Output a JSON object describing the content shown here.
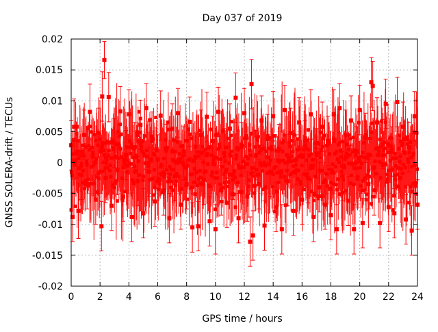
{
  "chart_data": {
    "type": "scatter",
    "title": "Day 037 of 2019",
    "xlabel": "GPS time / hours",
    "ylabel": "GNSS SOLERA-drift / TECUs",
    "xlim": [
      0,
      24
    ],
    "ylim": [
      -0.02,
      0.02
    ],
    "xticks": [
      0,
      2,
      4,
      6,
      8,
      10,
      12,
      14,
      16,
      18,
      20,
      22,
      24
    ],
    "xtick_labels": [
      "0",
      "2",
      "4",
      "6",
      "8",
      "10",
      "12",
      "14",
      "16",
      "18",
      "20",
      "22",
      "24"
    ],
    "yticks": [
      -0.02,
      -0.015,
      -0.01,
      -0.005,
      0,
      0.005,
      0.01,
      0.015,
      0.02
    ],
    "ytick_labels": [
      "-0.02",
      "-0.015",
      "-0.01",
      "-0.005",
      "0",
      "0.005",
      "0.01",
      "0.015",
      "0.02"
    ],
    "grid": true,
    "series_color": "#ff0000",
    "error_bars": true,
    "series": [
      {
        "points": [
          {
            "x": 0.0,
            "y": 0.0028,
            "err": 0.004
          },
          {
            "x": 0.1,
            "y": -0.0088,
            "err": 0.004
          },
          {
            "x": 0.2,
            "y": 0.0058,
            "err": 0.0045
          },
          {
            "x": 0.4,
            "y": 0.0015,
            "err": 0.004
          },
          {
            "x": 0.5,
            "y": -0.0078,
            "err": 0.0045
          },
          {
            "x": 0.7,
            "y": -0.002,
            "err": 0.004
          },
          {
            "x": 0.9,
            "y": 0.0045,
            "err": 0.004
          },
          {
            "x": 1.1,
            "y": -0.0035,
            "err": 0.004
          },
          {
            "x": 1.3,
            "y": 0.0082,
            "err": 0.0045
          },
          {
            "x": 1.5,
            "y": 0.001,
            "err": 0.004
          },
          {
            "x": 1.7,
            "y": -0.006,
            "err": 0.004
          },
          {
            "x": 1.9,
            "y": 0.0048,
            "err": 0.004
          },
          {
            "x": 2.1,
            "y": -0.0103,
            "err": 0.004
          },
          {
            "x": 2.15,
            "y": 0.0107,
            "err": 0.004
          },
          {
            "x": 2.3,
            "y": 0.0166,
            "err": 0.003
          },
          {
            "x": 2.4,
            "y": -0.0025,
            "err": 0.004
          },
          {
            "x": 2.6,
            "y": 0.0106,
            "err": 0.004
          },
          {
            "x": 2.8,
            "y": -0.007,
            "err": 0.004
          },
          {
            "x": 3.0,
            "y": 0.0032,
            "err": 0.004
          },
          {
            "x": 3.2,
            "y": -0.0012,
            "err": 0.004
          },
          {
            "x": 3.4,
            "y": 0.0083,
            "err": 0.004
          },
          {
            "x": 3.6,
            "y": -0.0055,
            "err": 0.004
          },
          {
            "x": 3.8,
            "y": 0.0012,
            "err": 0.004
          },
          {
            "x": 4.0,
            "y": 0.0078,
            "err": 0.004
          },
          {
            "x": 4.2,
            "y": -0.0088,
            "err": 0.004
          },
          {
            "x": 4.4,
            "y": 0.0025,
            "err": 0.004
          },
          {
            "x": 4.6,
            "y": -0.003,
            "err": 0.004
          },
          {
            "x": 4.8,
            "y": 0.0061,
            "err": 0.004
          },
          {
            "x": 5.0,
            "y": -0.0082,
            "err": 0.004
          },
          {
            "x": 5.2,
            "y": 0.0088,
            "err": 0.004
          },
          {
            "x": 5.4,
            "y": -0.0015,
            "err": 0.004
          },
          {
            "x": 5.6,
            "y": 0.0042,
            "err": 0.004
          },
          {
            "x": 5.8,
            "y": -0.0063,
            "err": 0.004
          },
          {
            "x": 6.0,
            "y": 0.0005,
            "err": 0.004
          },
          {
            "x": 6.2,
            "y": 0.0076,
            "err": 0.004
          },
          {
            "x": 6.4,
            "y": -0.0045,
            "err": 0.004
          },
          {
            "x": 6.6,
            "y": 0.0022,
            "err": 0.004
          },
          {
            "x": 6.8,
            "y": -0.009,
            "err": 0.004
          },
          {
            "x": 7.0,
            "y": 0.0055,
            "err": 0.004
          },
          {
            "x": 7.2,
            "y": -0.0022,
            "err": 0.004
          },
          {
            "x": 7.4,
            "y": 0.008,
            "err": 0.004
          },
          {
            "x": 7.6,
            "y": -0.0068,
            "err": 0.004
          },
          {
            "x": 7.8,
            "y": 0.0018,
            "err": 0.004
          },
          {
            "x": 8.0,
            "y": -0.0035,
            "err": 0.004
          },
          {
            "x": 8.2,
            "y": 0.0066,
            "err": 0.004
          },
          {
            "x": 8.4,
            "y": -0.0105,
            "err": 0.004
          },
          {
            "x": 8.6,
            "y": 0.0008,
            "err": 0.004
          },
          {
            "x": 8.8,
            "y": -0.0103,
            "err": 0.004
          },
          {
            "x": 9.0,
            "y": 0.0045,
            "err": 0.004
          },
          {
            "x": 9.2,
            "y": -0.0028,
            "err": 0.004
          },
          {
            "x": 9.4,
            "y": 0.0074,
            "err": 0.004
          },
          {
            "x": 9.6,
            "y": -0.0095,
            "err": 0.004
          },
          {
            "x": 9.8,
            "y": 0.0035,
            "err": 0.004
          },
          {
            "x": 10.0,
            "y": -0.0108,
            "err": 0.004
          },
          {
            "x": 10.2,
            "y": 0.0082,
            "err": 0.004
          },
          {
            "x": 10.4,
            "y": -0.0045,
            "err": 0.004
          },
          {
            "x": 10.6,
            "y": 0.0015,
            "err": 0.004
          },
          {
            "x": 10.8,
            "y": -0.0065,
            "err": 0.004
          },
          {
            "x": 11.0,
            "y": 0.0055,
            "err": 0.004
          },
          {
            "x": 11.2,
            "y": -0.002,
            "err": 0.004
          },
          {
            "x": 11.4,
            "y": 0.0105,
            "err": 0.004
          },
          {
            "x": 11.6,
            "y": -0.009,
            "err": 0.004
          },
          {
            "x": 11.8,
            "y": 0.0025,
            "err": 0.004
          },
          {
            "x": 12.0,
            "y": 0.008,
            "err": 0.004
          },
          {
            "x": 12.2,
            "y": -0.0055,
            "err": 0.004
          },
          {
            "x": 12.4,
            "y": -0.0128,
            "err": 0.004
          },
          {
            "x": 12.5,
            "y": 0.0127,
            "err": 0.004
          },
          {
            "x": 12.6,
            "y": -0.0118,
            "err": 0.004
          },
          {
            "x": 12.8,
            "y": 0.0012,
            "err": 0.004
          },
          {
            "x": 13.0,
            "y": -0.0035,
            "err": 0.004
          },
          {
            "x": 13.2,
            "y": 0.0068,
            "err": 0.004
          },
          {
            "x": 13.4,
            "y": -0.0102,
            "err": 0.004
          },
          {
            "x": 13.6,
            "y": 0.0038,
            "err": 0.004
          },
          {
            "x": 13.8,
            "y": -0.0015,
            "err": 0.004
          },
          {
            "x": 14.0,
            "y": 0.0075,
            "err": 0.004
          },
          {
            "x": 14.2,
            "y": -0.0072,
            "err": 0.004
          },
          {
            "x": 14.4,
            "y": 0.0022,
            "err": 0.004
          },
          {
            "x": 14.6,
            "y": -0.0108,
            "err": 0.004
          },
          {
            "x": 14.8,
            "y": 0.0085,
            "err": 0.004
          },
          {
            "x": 15.0,
            "y": -0.003,
            "err": 0.004
          },
          {
            "x": 15.2,
            "y": 0.0048,
            "err": 0.004
          },
          {
            "x": 15.4,
            "y": -0.0078,
            "err": 0.004
          },
          {
            "x": 15.6,
            "y": 0.0005,
            "err": 0.004
          },
          {
            "x": 15.8,
            "y": 0.0065,
            "err": 0.004
          },
          {
            "x": 16.0,
            "y": -0.006,
            "err": 0.004
          },
          {
            "x": 16.2,
            "y": 0.0028,
            "err": 0.004
          },
          {
            "x": 16.4,
            "y": -0.0025,
            "err": 0.004
          },
          {
            "x": 16.6,
            "y": 0.0078,
            "err": 0.004
          },
          {
            "x": 16.8,
            "y": -0.0088,
            "err": 0.004
          },
          {
            "x": 17.0,
            "y": 0.0015,
            "err": 0.004
          },
          {
            "x": 17.2,
            "y": -0.004,
            "err": 0.004
          },
          {
            "x": 17.4,
            "y": 0.0058,
            "err": 0.004
          },
          {
            "x": 17.6,
            "y": -0.0068,
            "err": 0.004
          },
          {
            "x": 17.8,
            "y": 0.0035,
            "err": 0.004
          },
          {
            "x": 18.0,
            "y": -0.0085,
            "err": 0.004
          },
          {
            "x": 18.2,
            "y": 0.0078,
            "err": 0.004
          },
          {
            "x": 18.4,
            "y": -0.0108,
            "err": 0.004
          },
          {
            "x": 18.6,
            "y": 0.0088,
            "err": 0.004
          },
          {
            "x": 18.8,
            "y": -0.0022,
            "err": 0.004
          },
          {
            "x": 19.0,
            "y": 0.0045,
            "err": 0.004
          },
          {
            "x": 19.2,
            "y": -0.0062,
            "err": 0.004
          },
          {
            "x": 19.4,
            "y": 0.0068,
            "err": 0.004
          },
          {
            "x": 19.6,
            "y": -0.0108,
            "err": 0.004
          },
          {
            "x": 19.8,
            "y": 0.0018,
            "err": 0.004
          },
          {
            "x": 20.0,
            "y": 0.0085,
            "err": 0.004
          },
          {
            "x": 20.2,
            "y": -0.0098,
            "err": 0.004
          },
          {
            "x": 20.4,
            "y": 0.004,
            "err": 0.004
          },
          {
            "x": 20.6,
            "y": -0.0035,
            "err": 0.004
          },
          {
            "x": 20.8,
            "y": 0.013,
            "err": 0.004
          },
          {
            "x": 20.9,
            "y": 0.0124,
            "err": 0.004
          },
          {
            "x": 21.0,
            "y": -0.0045,
            "err": 0.004
          },
          {
            "x": 21.2,
            "y": 0.0065,
            "err": 0.004
          },
          {
            "x": 21.4,
            "y": -0.0098,
            "err": 0.004
          },
          {
            "x": 21.6,
            "y": 0.003,
            "err": 0.004
          },
          {
            "x": 21.8,
            "y": 0.0095,
            "err": 0.004
          },
          {
            "x": 22.0,
            "y": -0.0072,
            "err": 0.004
          },
          {
            "x": 22.2,
            "y": 0.0018,
            "err": 0.004
          },
          {
            "x": 22.4,
            "y": -0.0082,
            "err": 0.004
          },
          {
            "x": 22.6,
            "y": 0.0098,
            "err": 0.004
          },
          {
            "x": 22.8,
            "y": -0.0025,
            "err": 0.004
          },
          {
            "x": 23.0,
            "y": 0.0058,
            "err": 0.004
          },
          {
            "x": 23.2,
            "y": -0.0092,
            "err": 0.004
          },
          {
            "x": 23.4,
            "y": 0.0025,
            "err": 0.004
          },
          {
            "x": 23.6,
            "y": -0.011,
            "err": 0.004
          },
          {
            "x": 23.8,
            "y": 0.0075,
            "err": 0.004
          },
          {
            "x": 24.0,
            "y": -0.0068,
            "err": 0.004
          }
        ]
      }
    ]
  }
}
